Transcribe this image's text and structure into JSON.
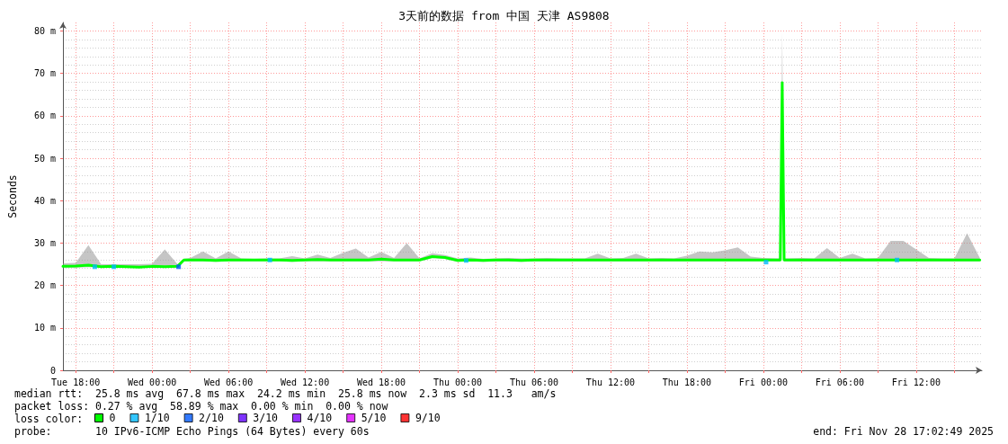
{
  "chart_data": {
    "type": "line",
    "title": "3天前的数据 from 中国 天津 AS9808",
    "ylabel": "Seconds",
    "xlim": [
      "2025-11-25T17:00",
      "2025-11-28T17:10"
    ],
    "xticks": [
      {
        "value": "2025-11-25T18:00",
        "label": "Tue 18:00"
      },
      {
        "value": "2025-11-25T21:00",
        "label": null
      },
      {
        "value": "2025-11-26T00:00",
        "label": "Wed 00:00"
      },
      {
        "value": "2025-11-26T03:00",
        "label": null
      },
      {
        "value": "2025-11-26T06:00",
        "label": "Wed 06:00"
      },
      {
        "value": "2025-11-26T09:00",
        "label": null
      },
      {
        "value": "2025-11-26T12:00",
        "label": "Wed 12:00"
      },
      {
        "value": "2025-11-26T15:00",
        "label": null
      },
      {
        "value": "2025-11-26T18:00",
        "label": "Wed 18:00"
      },
      {
        "value": "2025-11-26T21:00",
        "label": null
      },
      {
        "value": "2025-11-27T00:00",
        "label": "Thu 00:00"
      },
      {
        "value": "2025-11-27T03:00",
        "label": null
      },
      {
        "value": "2025-11-27T06:00",
        "label": "Thu 06:00"
      },
      {
        "value": "2025-11-27T09:00",
        "label": null
      },
      {
        "value": "2025-11-27T12:00",
        "label": "Thu 12:00"
      },
      {
        "value": "2025-11-27T15:00",
        "label": null
      },
      {
        "value": "2025-11-27T18:00",
        "label": "Thu 18:00"
      },
      {
        "value": "2025-11-27T21:00",
        "label": null
      },
      {
        "value": "2025-11-28T00:00",
        "label": "Fri 00:00"
      },
      {
        "value": "2025-11-28T03:00",
        "label": null
      },
      {
        "value": "2025-11-28T06:00",
        "label": "Fri 06:00"
      },
      {
        "value": "2025-11-28T09:00",
        "label": null
      },
      {
        "value": "2025-11-28T12:00",
        "label": "Fri 12:00"
      },
      {
        "value": "2025-11-28T15:00",
        "label": null
      }
    ],
    "ylim": [
      0,
      82
    ],
    "yticks": [
      0,
      {
        "value": 10,
        "label": "10 m"
      },
      {
        "value": 20,
        "label": "20 m"
      },
      {
        "value": 30,
        "label": "30 m"
      },
      {
        "value": 40,
        "label": "40 m"
      },
      {
        "value": 50,
        "label": "50 m"
      },
      {
        "value": 60,
        "label": "60 m"
      },
      {
        "value": 70,
        "label": "70 m"
      },
      {
        "value": 80,
        "label": "80 m"
      }
    ],
    "grid": true,
    "legend": "bottom left",
    "marker": "none",
    "line_style": "solid",
    "series": [
      {
        "name": "0",
        "color": "#00ff00",
        "x": [
          "2025-11-25T17:00",
          "2025-11-25T18:00",
          "2025-11-25T19:00",
          "2025-11-25T20:00",
          "2025-11-25T21:00",
          "2025-11-25T22:00",
          "2025-11-25T23:00",
          "2025-11-26T00:00",
          "2025-11-26T01:00",
          "2025-11-26T02:00",
          "2025-11-26T02:30",
          "2025-11-26T03:00",
          "2025-11-26T04:00",
          "2025-11-26T05:00",
          "2025-11-26T06:00",
          "2025-11-26T07:00",
          "2025-11-26T08:00",
          "2025-11-26T09:00",
          "2025-11-26T10:00",
          "2025-11-26T11:00",
          "2025-11-26T12:00",
          "2025-11-26T13:00",
          "2025-11-26T14:00",
          "2025-11-26T15:00",
          "2025-11-26T16:00",
          "2025-11-26T17:00",
          "2025-11-26T18:00",
          "2025-11-26T19:00",
          "2025-11-26T20:00",
          "2025-11-26T21:00",
          "2025-11-26T22:00",
          "2025-11-26T23:00",
          "2025-11-27T00:00",
          "2025-11-27T01:00",
          "2025-11-27T02:00",
          "2025-11-27T03:00",
          "2025-11-27T04:00",
          "2025-11-27T05:00",
          "2025-11-27T06:00",
          "2025-11-27T07:00",
          "2025-11-27T08:00",
          "2025-11-27T09:00",
          "2025-11-27T10:00",
          "2025-11-27T11:00",
          "2025-11-27T12:00",
          "2025-11-27T13:00",
          "2025-11-27T14:00",
          "2025-11-27T15:00",
          "2025-11-27T16:00",
          "2025-11-27T17:00",
          "2025-11-27T18:00",
          "2025-11-27T19:00",
          "2025-11-27T20:00",
          "2025-11-27T21:00",
          "2025-11-27T22:00",
          "2025-11-27T23:00",
          "2025-11-28T00:00",
          "2025-11-28T01:00",
          "2025-11-28T01:20",
          "2025-11-28T01:29",
          "2025-11-28T01:38",
          "2025-11-28T02:00",
          "2025-11-28T03:00",
          "2025-11-28T04:00",
          "2025-11-28T05:00",
          "2025-11-28T06:00",
          "2025-11-28T07:00",
          "2025-11-28T08:00",
          "2025-11-28T09:00",
          "2025-11-28T10:00",
          "2025-11-28T11:00",
          "2025-11-28T12:00",
          "2025-11-28T13:00",
          "2025-11-28T14:00",
          "2025-11-28T15:00",
          "2025-11-28T16:00",
          "2025-11-28T17:00"
        ],
        "values": [
          24.5,
          24.6,
          24.8,
          24.4,
          24.5,
          24.4,
          24.3,
          24.5,
          24.4,
          24.5,
          26,
          26,
          26,
          25.9,
          26,
          26,
          26,
          26,
          26,
          25.9,
          26,
          26.1,
          26,
          26,
          26,
          26,
          26.2,
          26,
          26,
          26,
          26.8,
          26.6,
          25.9,
          26,
          25.9,
          26,
          26,
          25.9,
          26,
          26,
          26,
          26,
          26,
          26,
          26,
          26,
          26,
          26,
          26,
          26,
          26,
          26,
          26,
          26,
          26,
          26,
          26,
          26,
          26,
          67.8,
          26,
          26,
          26,
          26,
          26,
          26,
          26,
          26,
          26,
          26,
          26,
          26,
          26,
          26,
          26,
          26,
          26
        ],
        "lower": [
          24.2,
          24.2,
          24.3,
          24.2,
          24.2,
          24.2,
          24.2,
          24.2,
          24.2,
          24.2,
          25.7,
          25.7,
          25.7,
          25.6,
          25.7,
          25.7,
          25.7,
          25.7,
          25.7,
          25.6,
          25.7,
          25.7,
          25.7,
          25.7,
          25.7,
          25.7,
          25.7,
          25.7,
          25.7,
          25.7,
          26.5,
          26.3,
          25.6,
          25.7,
          25.6,
          25.7,
          25.7,
          25.6,
          25.7,
          25.7,
          25.7,
          25.7,
          25.7,
          25.7,
          25.7,
          25.7,
          25.7,
          25.7,
          25.7,
          25.7,
          25.7,
          25.7,
          25.7,
          25.7,
          25.7,
          25.7,
          25.7,
          25.7,
          25.7,
          63,
          25.7,
          25.7,
          25.7,
          25.7,
          25.7,
          25.7,
          25.7,
          25.7,
          25.7,
          25.7,
          25.7,
          25.7,
          25.7,
          25.7,
          25.7,
          25.7,
          25.7
        ],
        "upper": [
          25.2,
          25.3,
          29.5,
          25,
          25,
          25,
          25,
          25.1,
          28.5,
          25,
          26.3,
          26.5,
          28,
          26.4,
          28,
          26.4,
          26.3,
          26.4,
          26.4,
          26.9,
          26.4,
          27.3,
          26.5,
          27.7,
          28.7,
          26.6,
          27.9,
          26.5,
          30,
          26.4,
          27.6,
          27.2,
          26.4,
          26.6,
          26.3,
          26.4,
          26.5,
          26.4,
          26.4,
          26.5,
          26.4,
          26.4,
          26.4,
          27.5,
          26.4,
          26.5,
          27.5,
          26.4,
          26.5,
          26.4,
          27,
          28,
          27.8,
          28.3,
          29,
          26.8,
          26.5,
          26.4,
          26.4,
          79.5,
          26.4,
          26.4,
          26.5,
          26.4,
          28.8,
          26.5,
          27.5,
          26.4,
          26.5,
          30.5,
          30.5,
          28.5,
          26.5,
          26.4,
          26.4,
          32.3,
          26.5
        ]
      },
      {
        "name": "1/10",
        "type": "scatter",
        "marker": "square",
        "color": "#00b8ff",
        "x": [
          "2025-11-25T19:30",
          "2025-11-25T21:00",
          "2025-11-26T09:15",
          "2025-11-27T00:40",
          "2025-11-28T00:13",
          "2025-11-28T10:30"
        ],
        "values": [
          24.4,
          24.4,
          26,
          25.9,
          25.5,
          26
        ]
      },
      {
        "name": "2/10",
        "type": "scatter",
        "marker": "square",
        "color": "#0059ff",
        "x": [
          "2025-11-26T02:05"
        ],
        "values": [
          24.4
        ]
      },
      {
        "name": "3/10",
        "type": "scatter",
        "marker": "square",
        "color": "#5e00ff"
      },
      {
        "name": "4/10",
        "type": "scatter",
        "marker": "square",
        "color": "#7e00ff"
      },
      {
        "name": "5/10",
        "type": "scatter",
        "marker": "square",
        "color": "#dd00ff"
      },
      {
        "name": "9/10",
        "type": "scatter",
        "marker": "square",
        "color": "#ff0000"
      }
    ],
    "annotations": [
      "median rtt:  25.8 ms avg  67.8 ms max  24.2 ms min  25.8 ms now  2.3 ms sd  11.3   am/s",
      "packet loss: 0.27 % avg  58.89 % max  0.00 % min  0.00 % now",
      "loss color:",
      "probe:       10 IPv6-ICMP Echo Pings (64 Bytes) every 60s",
      "end: Fri Nov 28 17:02:49 2025"
    ]
  }
}
